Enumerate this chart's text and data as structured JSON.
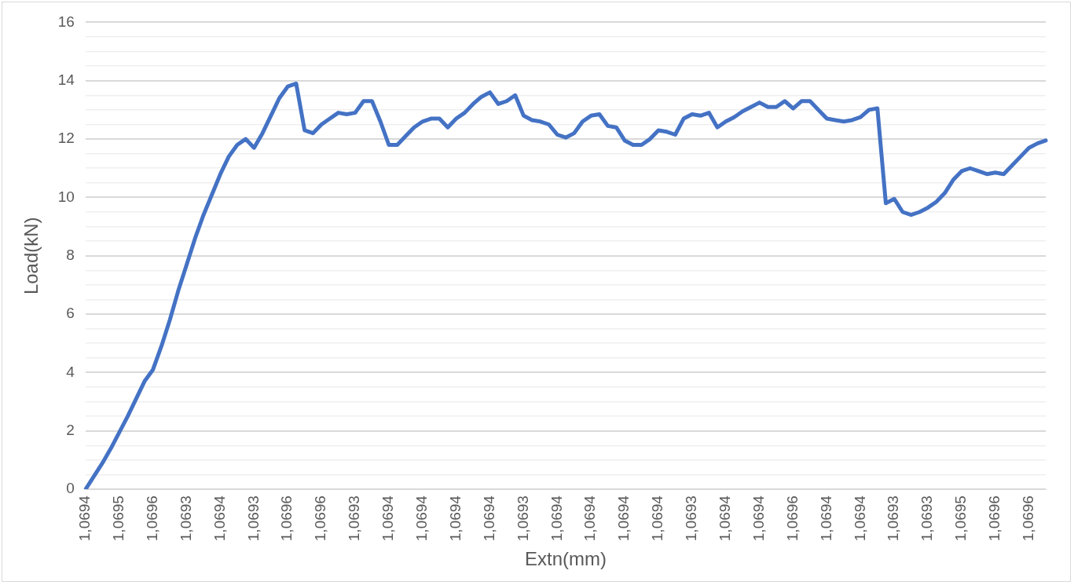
{
  "chart_data": {
    "type": "line",
    "xlabel": "Extn(mm)",
    "ylabel": "Load(kN)",
    "categories": [
      "1,0694",
      null,
      null,
      null,
      "1,0695",
      null,
      null,
      null,
      "1,0696",
      null,
      null,
      null,
      "1,0693",
      null,
      null,
      null,
      "1,0694",
      null,
      null,
      null,
      "1,0693",
      null,
      null,
      null,
      "1,0696",
      null,
      null,
      null,
      "1,0696",
      null,
      null,
      null,
      "1,0693",
      null,
      null,
      null,
      "1,0694",
      null,
      null,
      null,
      "1,0694",
      null,
      null,
      null,
      "1,0694",
      null,
      null,
      null,
      "1,0694",
      null,
      null,
      null,
      "1,0693",
      null,
      null,
      null,
      "1,0694",
      null,
      null,
      null,
      "1,0694",
      null,
      null,
      null,
      "1,0694",
      null,
      null,
      null,
      "1,0694",
      null,
      null,
      null,
      "1,0693",
      null,
      null,
      null,
      "1,0694",
      null,
      null,
      null,
      "1,0694",
      null,
      null,
      null,
      "1,0696",
      null,
      null,
      null,
      "1,0694",
      null,
      null,
      null,
      "1,0694",
      null,
      null,
      null,
      "1,0693",
      null,
      null,
      null,
      "1,0693",
      null,
      null,
      null,
      "1,0695",
      null,
      null,
      null,
      "1,0696",
      null,
      null,
      null,
      "1,0696",
      null,
      null
    ],
    "series": [
      {
        "color": "#4472c4",
        "values": [
          0,
          0.45,
          0.9,
          1.4,
          1.95,
          2.5,
          3.1,
          3.7,
          4.1,
          4.9,
          5.8,
          6.8,
          7.7,
          8.6,
          9.4,
          10.1,
          10.8,
          11.4,
          11.8,
          12.0,
          11.7,
          12.2,
          12.8,
          13.4,
          13.8,
          13.9,
          12.3,
          12.2,
          12.5,
          12.7,
          12.9,
          12.85,
          12.9,
          13.3,
          13.3,
          12.6,
          11.8,
          11.8,
          12.1,
          12.4,
          12.6,
          12.7,
          12.7,
          12.4,
          12.7,
          12.9,
          13.2,
          13.45,
          13.6,
          13.2,
          13.3,
          13.5,
          12.8,
          12.65,
          12.6,
          12.5,
          12.15,
          12.05,
          12.2,
          12.6,
          12.8,
          12.85,
          12.45,
          12.4,
          11.95,
          11.8,
          11.8,
          12.0,
          12.3,
          12.25,
          12.15,
          12.7,
          12.85,
          12.8,
          12.9,
          12.4,
          12.6,
          12.75,
          12.95,
          13.1,
          13.25,
          13.1,
          13.1,
          13.3,
          13.05,
          13.3,
          13.3,
          13.0,
          12.7,
          12.65,
          12.6,
          12.65,
          12.75,
          13.0,
          13.05,
          9.8,
          9.95,
          9.5,
          9.4,
          9.5,
          9.65,
          9.85,
          10.15,
          10.6,
          10.9,
          11.0,
          10.9,
          10.8,
          10.85,
          10.8,
          11.1,
          11.4,
          11.7,
          11.85,
          11.95
        ]
      }
    ],
    "ylim": [
      0,
      16
    ],
    "yticks": [
      0,
      {
        "value": 0.5,
        "label": null
      },
      {
        "value": 1,
        "label": null
      },
      {
        "value": 1.5,
        "label": null
      },
      2,
      {
        "value": 2.5,
        "label": null
      },
      {
        "value": 3,
        "label": null
      },
      {
        "value": 3.5,
        "label": null
      },
      4,
      {
        "value": 4.5,
        "label": null
      },
      {
        "value": 5,
        "label": null
      },
      {
        "value": 5.5,
        "label": null
      },
      6,
      {
        "value": 6.5,
        "label": null
      },
      {
        "value": 7,
        "label": null
      },
      {
        "value": 7.5,
        "label": null
      },
      8,
      {
        "value": 8.5,
        "label": null
      },
      {
        "value": 9,
        "label": null
      },
      {
        "value": 9.5,
        "label": null
      },
      10,
      {
        "value": 10.5,
        "label": null
      },
      {
        "value": 11,
        "label": null
      },
      {
        "value": 11.5,
        "label": null
      },
      12,
      {
        "value": 12.5,
        "label": null
      },
      {
        "value": 13,
        "label": null
      },
      {
        "value": 13.5,
        "label": null
      },
      14,
      {
        "value": 14.5,
        "label": null
      },
      {
        "value": 15,
        "label": null
      },
      {
        "value": 15.5,
        "label": null
      },
      16
    ],
    "grid": "y",
    "legend": false,
    "marker": "none",
    "line_style": "solid"
  }
}
